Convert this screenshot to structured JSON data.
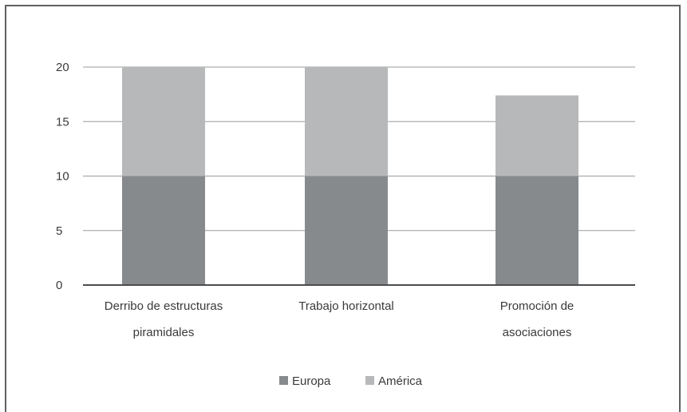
{
  "chart_data": {
    "type": "bar",
    "stacked": true,
    "categories": [
      [
        "Derribo de estructuras",
        "piramidales"
      ],
      [
        "Trabajo horizontal"
      ],
      [
        "Promoción de",
        "asociaciones"
      ]
    ],
    "series": [
      {
        "name": "Europa",
        "values": [
          10,
          10,
          10
        ],
        "color": "#878a8d"
      },
      {
        "name": "América",
        "values": [
          10,
          10,
          7.4
        ],
        "color": "#b7b8ba"
      }
    ],
    "ylim": [
      0,
      20
    ],
    "yticks": [
      0,
      5,
      10,
      15,
      20
    ],
    "grid": true,
    "legend": "bottom-center",
    "title": "",
    "xlabel": "",
    "ylabel": ""
  }
}
